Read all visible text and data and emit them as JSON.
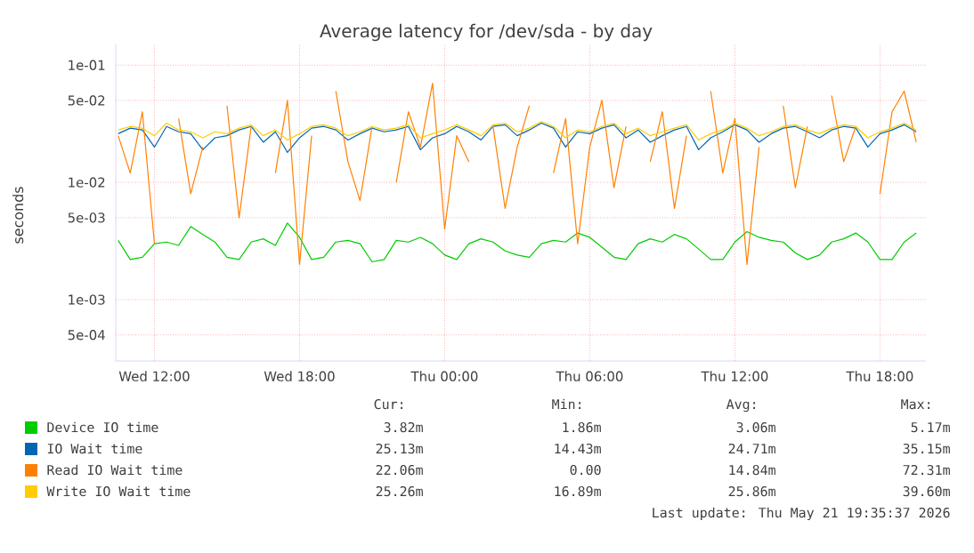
{
  "chart_data": {
    "type": "line",
    "title": "Average latency for /dev/sda - by day",
    "ylabel": "seconds",
    "log": "y",
    "grid": true,
    "legend": "bottom",
    "marker": "none",
    "line_style": "solid",
    "xlim": [
      "2026-05-20T10:24",
      "2026-05-21T19:54"
    ],
    "ylim": [
      0.0003,
      0.15
    ],
    "xticks": [
      {
        "value": "2026-05-20T12:00",
        "label": "Wed 12:00"
      },
      {
        "value": "2026-05-20T18:00",
        "label": "Wed 18:00"
      },
      {
        "value": "2026-05-21T00:00",
        "label": "Thu 00:00"
      },
      {
        "value": "2026-05-21T06:00",
        "label": "Thu 06:00"
      },
      {
        "value": "2026-05-21T12:00",
        "label": "Thu 12:00"
      },
      {
        "value": "2026-05-21T18:00",
        "label": "Thu 18:00"
      }
    ],
    "yticks": [
      {
        "value": 0.0005,
        "label": "5e-04"
      },
      {
        "value": 0.001,
        "label": "1e-03"
      },
      {
        "value": 0.005,
        "label": "5e-03"
      },
      {
        "value": 0.01,
        "label": "1e-02"
      },
      {
        "value": 0.05,
        "label": "5e-02"
      },
      {
        "value": 0.1,
        "label": "1e-01"
      }
    ],
    "x": [
      "2026-05-20T10:30",
      "2026-05-20T11:00",
      "2026-05-20T11:30",
      "2026-05-20T12:00",
      "2026-05-20T12:30",
      "2026-05-20T13:00",
      "2026-05-20T13:30",
      "2026-05-20T14:00",
      "2026-05-20T14:30",
      "2026-05-20T15:00",
      "2026-05-20T15:30",
      "2026-05-20T16:00",
      "2026-05-20T16:30",
      "2026-05-20T17:00",
      "2026-05-20T17:30",
      "2026-05-20T18:00",
      "2026-05-20T18:30",
      "2026-05-20T19:00",
      "2026-05-20T19:30",
      "2026-05-20T20:00",
      "2026-05-20T20:30",
      "2026-05-20T21:00",
      "2026-05-20T21:30",
      "2026-05-20T22:00",
      "2026-05-20T22:30",
      "2026-05-20T23:00",
      "2026-05-20T23:30",
      "2026-05-21T00:00",
      "2026-05-21T00:30",
      "2026-05-21T01:00",
      "2026-05-21T01:30",
      "2026-05-21T02:00",
      "2026-05-21T02:30",
      "2026-05-21T03:00",
      "2026-05-21T03:30",
      "2026-05-21T04:00",
      "2026-05-21T04:30",
      "2026-05-21T05:00",
      "2026-05-21T05:30",
      "2026-05-21T06:00",
      "2026-05-21T06:30",
      "2026-05-21T07:00",
      "2026-05-21T07:30",
      "2026-05-21T08:00",
      "2026-05-21T08:30",
      "2026-05-21T09:00",
      "2026-05-21T09:30",
      "2026-05-21T10:00",
      "2026-05-21T10:30",
      "2026-05-21T11:00",
      "2026-05-21T11:30",
      "2026-05-21T12:00",
      "2026-05-21T12:30",
      "2026-05-21T13:00",
      "2026-05-21T13:30",
      "2026-05-21T14:00",
      "2026-05-21T14:30",
      "2026-05-21T15:00",
      "2026-05-21T15:30",
      "2026-05-21T16:00",
      "2026-05-21T16:30",
      "2026-05-21T17:00",
      "2026-05-21T17:30",
      "2026-05-21T18:00",
      "2026-05-21T18:30",
      "2026-05-21T19:00",
      "2026-05-21T19:30"
    ],
    "series": [
      {
        "name": "Device IO time",
        "color": "#00cc00",
        "values": [
          0.0032,
          0.0022,
          0.0023,
          0.003,
          0.0031,
          0.0029,
          0.0042,
          0.0036,
          0.0031,
          0.0023,
          0.0022,
          0.0031,
          0.0033,
          0.0029,
          0.0045,
          0.0034,
          0.0022,
          0.0023,
          0.0031,
          0.0032,
          0.003,
          0.0021,
          0.0022,
          0.0032,
          0.0031,
          0.0034,
          0.003,
          0.0024,
          0.0022,
          0.003,
          0.0033,
          0.0031,
          0.0026,
          0.0024,
          0.0023,
          0.003,
          0.0032,
          0.0031,
          0.0037,
          0.0034,
          0.0028,
          0.0023,
          0.0022,
          0.003,
          0.0033,
          0.0031,
          0.0036,
          0.0033,
          0.0027,
          0.0022,
          0.0022,
          0.0031,
          0.0038,
          0.0034,
          0.0032,
          0.0031,
          0.0025,
          0.0022,
          0.0024,
          0.0031,
          0.0033,
          0.0037,
          0.0031,
          0.0022,
          0.0022,
          0.0031,
          0.0037
        ]
      },
      {
        "name": "IO Wait time",
        "color": "#0066b3",
        "values": [
          0.026,
          0.029,
          0.028,
          0.02,
          0.03,
          0.027,
          0.026,
          0.019,
          0.024,
          0.025,
          0.028,
          0.03,
          0.022,
          0.027,
          0.018,
          0.024,
          0.029,
          0.03,
          0.028,
          0.023,
          0.026,
          0.029,
          0.027,
          0.028,
          0.03,
          0.019,
          0.024,
          0.026,
          0.03,
          0.027,
          0.023,
          0.03,
          0.031,
          0.025,
          0.028,
          0.032,
          0.029,
          0.02,
          0.027,
          0.026,
          0.029,
          0.031,
          0.024,
          0.028,
          0.022,
          0.025,
          0.028,
          0.03,
          0.019,
          0.024,
          0.027,
          0.031,
          0.028,
          0.022,
          0.026,
          0.029,
          0.03,
          0.027,
          0.024,
          0.028,
          0.03,
          0.029,
          0.02,
          0.026,
          0.028,
          0.031,
          0.027
        ]
      },
      {
        "name": "Read IO Wait time",
        "color": "#ff8000",
        "values": [
          0.025,
          0.012,
          0.04,
          0.003,
          null,
          0.035,
          0.008,
          0.02,
          null,
          0.045,
          0.005,
          0.03,
          null,
          0.012,
          0.05,
          0.002,
          0.025,
          null,
          0.06,
          0.015,
          0.007,
          0.03,
          null,
          0.01,
          0.04,
          0.02,
          0.07,
          0.004,
          0.025,
          0.015,
          null,
          0.03,
          0.006,
          0.02,
          0.045,
          null,
          0.012,
          0.035,
          0.003,
          0.02,
          0.05,
          0.009,
          0.03,
          null,
          0.015,
          0.04,
          0.006,
          0.025,
          null,
          0.06,
          0.012,
          0.035,
          0.002,
          0.02,
          null,
          0.045,
          0.009,
          0.03,
          null,
          0.055,
          0.015,
          0.03,
          null,
          0.008,
          0.04,
          0.06,
          0.022
        ]
      },
      {
        "name": "Write IO Wait time",
        "color": "#ffcc00",
        "values": [
          0.028,
          0.03,
          0.029,
          0.025,
          0.032,
          0.028,
          0.027,
          0.024,
          0.027,
          0.026,
          0.029,
          0.031,
          0.025,
          0.028,
          0.023,
          0.026,
          0.03,
          0.031,
          0.029,
          0.025,
          0.027,
          0.03,
          0.028,
          0.029,
          0.031,
          0.024,
          0.026,
          0.028,
          0.031,
          0.028,
          0.025,
          0.031,
          0.032,
          0.027,
          0.029,
          0.033,
          0.03,
          0.024,
          0.028,
          0.027,
          0.03,
          0.032,
          0.026,
          0.029,
          0.025,
          0.027,
          0.029,
          0.031,
          0.023,
          0.026,
          0.028,
          0.032,
          0.029,
          0.025,
          0.027,
          0.03,
          0.031,
          0.028,
          0.026,
          0.029,
          0.031,
          0.03,
          0.024,
          0.027,
          0.029,
          0.032,
          0.028
        ]
      }
    ],
    "annotations": [
      "Cur:",
      "Min:",
      "Avg:",
      "Max:",
      "3.82m",
      "1.86m",
      "3.06m",
      "5.17m",
      "25.13m",
      "14.43m",
      "24.71m",
      "35.15m",
      "22.06m",
      "0.00",
      "14.84m",
      "72.31m",
      "25.26m",
      "16.89m",
      "25.86m",
      "39.60m",
      "Last update: Thu May 21 19:35:37 2026"
    ]
  }
}
